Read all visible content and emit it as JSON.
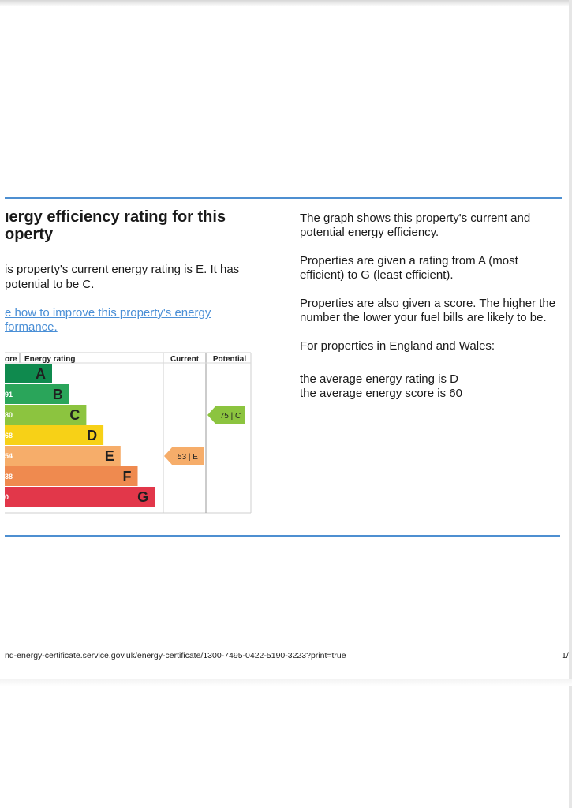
{
  "page": {
    "heading": "ıergy efficiency rating for this\noperty",
    "intro": "is property's current energy rating is E. It has\n potential to be C.",
    "improve_link": "e how to improve this property's energy\nformance."
  },
  "explanation": {
    "p1": "The graph shows this property's current and potential energy efficiency.",
    "p2": "Properties are given a rating from A (most efficient) to G (least efficient).",
    "p3": "Properties are also given a score. The higher the number the lower your fuel bills are likely to be.",
    "p4": "For properties in England and Wales:",
    "p5a": "the average energy rating is D",
    "p5b": "the average energy score is 60"
  },
  "footer": {
    "url": "nd-energy-certificate.service.gov.uk/energy-certificate/1300-7495-0422-5190-3223?print=true",
    "page_number": "1/"
  },
  "chart_data": {
    "type": "bar",
    "headers": {
      "score": "ore",
      "rating": "Energy rating",
      "current": "Current",
      "potential": "Potential"
    },
    "bands": [
      {
        "letter": "A",
        "score": "",
        "color": "#0f8a4e"
      },
      {
        "letter": "B",
        "score": "91",
        "color": "#2aa55a"
      },
      {
        "letter": "C",
        "score": "80",
        "color": "#8cc43f"
      },
      {
        "letter": "D",
        "score": "68",
        "color": "#f7d117"
      },
      {
        "letter": "E",
        "score": "54",
        "color": "#f6ad6a"
      },
      {
        "letter": "F",
        "score": "38",
        "color": "#ef8a4f"
      },
      {
        "letter": "G",
        "score": "0",
        "color": "#e2374a"
      }
    ],
    "current": {
      "value": 53,
      "letter": "E",
      "label": "53 | E",
      "color": "#f6ad6a"
    },
    "potential": {
      "value": 75,
      "letter": "C",
      "label": "75 | C",
      "color": "#8cc43f"
    }
  }
}
